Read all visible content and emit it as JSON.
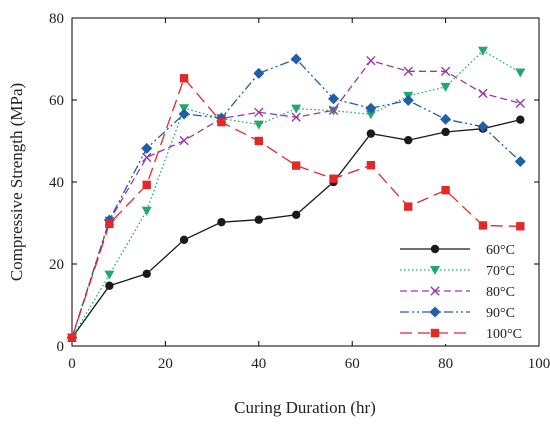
{
  "chart_data": {
    "type": "line",
    "xlabel": "Curing Duration (hr)",
    "ylabel": "Compressive Strength (MPa)",
    "xlim": [
      0,
      100
    ],
    "ylim": [
      0,
      80
    ],
    "xticks": [
      "0",
      "20",
      "40",
      "60",
      "80",
      "100"
    ],
    "yticks": [
      "0",
      "20",
      "40",
      "60",
      "80"
    ],
    "grid": false,
    "legend_position": "bottom-right",
    "series": [
      {
        "name": "60°C",
        "color": "#1a1a1a",
        "marker": "circle",
        "line": "solid",
        "x": [
          0,
          8,
          16,
          24,
          32,
          40,
          48,
          56,
          64,
          72,
          80,
          88,
          96
        ],
        "values": [
          2,
          14.7,
          17.6,
          25.9,
          30.2,
          30.8,
          32,
          40,
          51.8,
          50.2,
          52.2,
          53,
          55.2
        ]
      },
      {
        "name": "70°C",
        "color": "#22a86a",
        "marker": "triangle-down",
        "line": "dotted",
        "x": [
          0,
          8,
          16,
          24,
          32,
          40,
          48,
          56,
          64,
          72,
          80,
          88,
          96
        ],
        "values": [
          2,
          17.4,
          33,
          58,
          55.5,
          54,
          57.9,
          57.4,
          56.5,
          61,
          63.2,
          72,
          66.7
        ]
      },
      {
        "name": "80°C",
        "color": "#9a3aa6",
        "marker": "x",
        "line": "dashed",
        "x": [
          0,
          8,
          16,
          24,
          32,
          40,
          48,
          56,
          64,
          72,
          80,
          88,
          96
        ],
        "values": [
          2,
          30.5,
          46,
          50.1,
          55.5,
          57,
          55.8,
          57.5,
          69.6,
          67,
          67,
          61.6,
          59.2
        ]
      },
      {
        "name": "90°C",
        "color": "#1f5fa8",
        "marker": "diamond",
        "line": "dashdotdot",
        "x": [
          0,
          8,
          16,
          24,
          32,
          40,
          48,
          56,
          64,
          72,
          80,
          88,
          96
        ],
        "values": [
          2,
          30.7,
          48.2,
          56.6,
          55.6,
          66.5,
          70,
          60.3,
          58,
          59.9,
          55.3,
          53.5,
          45
        ]
      },
      {
        "name": "100°C",
        "color": "#e02a2a",
        "marker": "square",
        "line": "longdash",
        "x": [
          0,
          8,
          16,
          24,
          32,
          40,
          48,
          56,
          64,
          72,
          80,
          88,
          96
        ],
        "values": [
          2,
          29.8,
          39.3,
          65.3,
          54.6,
          50,
          44,
          40.8,
          44.1,
          34,
          38,
          29.4,
          29.2
        ]
      }
    ]
  }
}
